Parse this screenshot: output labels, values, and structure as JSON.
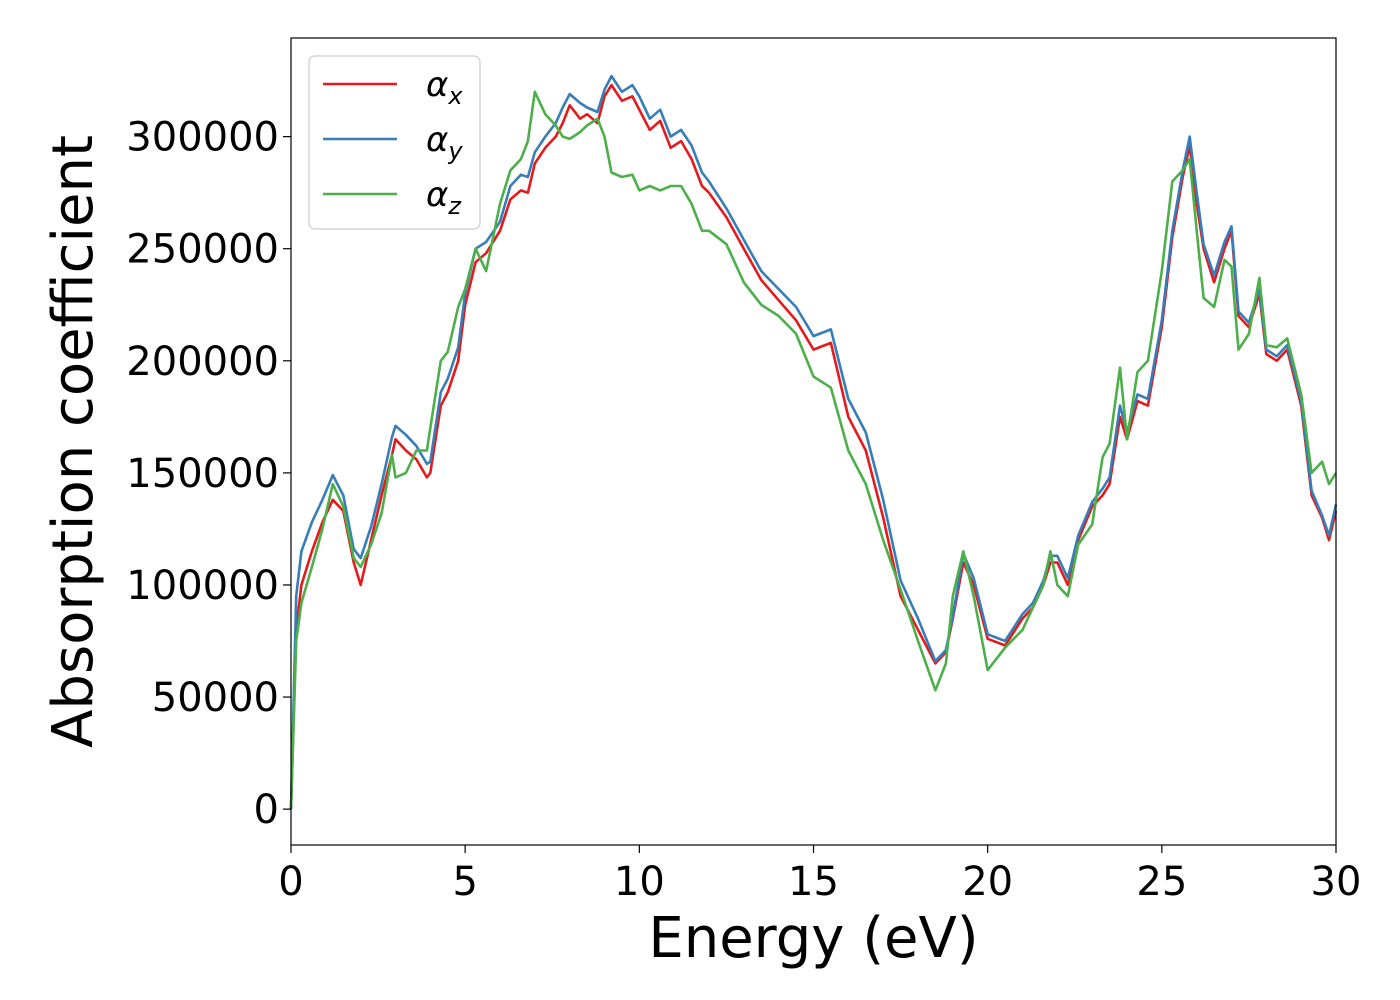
{
  "chart_data": {
    "type": "line",
    "xlabel": "Energy (eV)",
    "ylabel": "Absorption coefficient",
    "xlim": [
      0,
      30
    ],
    "ylim": [
      -16000,
      344000
    ],
    "xticks": [
      0,
      5,
      10,
      15,
      20,
      25,
      30
    ],
    "xtick_labels": [
      "0",
      "5",
      "10",
      "15",
      "20",
      "25",
      "30"
    ],
    "yticks": [
      0,
      50000,
      100000,
      150000,
      200000,
      250000,
      300000
    ],
    "ytick_labels": [
      "0",
      "50000",
      "100000",
      "150000",
      "200000",
      "250000",
      "300000"
    ],
    "grid": false,
    "legend": "top-left",
    "series": [
      {
        "name": "αx",
        "symbol": "α",
        "subscript": "x",
        "color": "#e41a1c",
        "x": [
          0,
          0.15,
          0.3,
          0.6,
          0.9,
          1.2,
          1.5,
          1.8,
          2.0,
          2.3,
          2.6,
          2.9,
          3.0,
          3.3,
          3.6,
          3.9,
          4.0,
          4.3,
          4.5,
          4.8,
          5.0,
          5.3,
          5.6,
          6.0,
          6.3,
          6.6,
          6.8,
          7.0,
          7.3,
          7.6,
          7.8,
          8.0,
          8.3,
          8.5,
          8.8,
          9.0,
          9.2,
          9.5,
          9.8,
          10.0,
          10.3,
          10.6,
          10.9,
          11.2,
          11.5,
          11.8,
          12.0,
          12.5,
          13.0,
          13.5,
          14.0,
          14.5,
          15.0,
          15.5,
          16.0,
          16.5,
          17.0,
          17.5,
          18.0,
          18.5,
          18.8,
          19.0,
          19.3,
          19.6,
          20.0,
          20.5,
          21.0,
          21.3,
          21.6,
          21.8,
          22.0,
          22.3,
          22.6,
          23.0,
          23.3,
          23.5,
          23.8,
          24.0,
          24.3,
          24.6,
          25.0,
          25.3,
          25.6,
          25.8,
          26.0,
          26.2,
          26.5,
          26.8,
          27.0,
          27.2,
          27.5,
          27.8,
          28.0,
          28.3,
          28.6,
          29.0,
          29.3,
          29.6,
          29.8,
          30.0
        ],
        "y": [
          0,
          80000,
          100000,
          115000,
          128000,
          138000,
          133000,
          110000,
          100000,
          120000,
          140000,
          158000,
          165000,
          160000,
          156000,
          148000,
          150000,
          180000,
          186000,
          200000,
          225000,
          244000,
          248000,
          258000,
          272000,
          276000,
          275000,
          288000,
          295000,
          300000,
          306000,
          314000,
          308000,
          310000,
          306000,
          318000,
          323000,
          316000,
          318000,
          312000,
          303000,
          307000,
          295000,
          298000,
          290000,
          278000,
          275000,
          264000,
          250000,
          236000,
          227000,
          218000,
          205000,
          208000,
          175000,
          160000,
          130000,
          95000,
          80000,
          65000,
          70000,
          85000,
          110000,
          100000,
          76000,
          73000,
          85000,
          90000,
          100000,
          110000,
          110000,
          100000,
          120000,
          135000,
          140000,
          145000,
          175000,
          165000,
          182000,
          180000,
          215000,
          255000,
          282000,
          296000,
          270000,
          250000,
          235000,
          250000,
          258000,
          220000,
          215000,
          230000,
          203000,
          200000,
          205000,
          180000,
          140000,
          130000,
          120000,
          133000
        ]
      },
      {
        "name": "αy",
        "symbol": "α",
        "subscript": "y",
        "color": "#377eb8",
        "x": [
          0,
          0.15,
          0.3,
          0.6,
          0.9,
          1.2,
          1.5,
          1.8,
          2.0,
          2.3,
          2.6,
          2.9,
          3.0,
          3.3,
          3.6,
          3.9,
          4.0,
          4.3,
          4.5,
          4.8,
          5.0,
          5.3,
          5.6,
          6.0,
          6.3,
          6.6,
          6.8,
          7.0,
          7.3,
          7.6,
          7.8,
          8.0,
          8.3,
          8.5,
          8.8,
          9.0,
          9.2,
          9.5,
          9.8,
          10.0,
          10.3,
          10.6,
          10.9,
          11.2,
          11.5,
          11.8,
          12.0,
          12.5,
          13.0,
          13.5,
          14.0,
          14.5,
          15.0,
          15.5,
          16.0,
          16.5,
          17.0,
          17.5,
          18.0,
          18.5,
          18.8,
          19.0,
          19.3,
          19.6,
          20.0,
          20.5,
          21.0,
          21.3,
          21.6,
          21.8,
          22.0,
          22.3,
          22.6,
          23.0,
          23.3,
          23.5,
          23.8,
          24.0,
          24.3,
          24.6,
          25.0,
          25.3,
          25.6,
          25.8,
          26.0,
          26.2,
          26.5,
          26.8,
          27.0,
          27.2,
          27.5,
          27.8,
          28.0,
          28.3,
          28.6,
          29.0,
          29.3,
          29.6,
          29.8,
          30.0
        ],
        "y": [
          0,
          95000,
          115000,
          128000,
          138000,
          149000,
          140000,
          116000,
          112000,
          126000,
          145000,
          166000,
          171000,
          167000,
          162000,
          154000,
          155000,
          186000,
          192000,
          206000,
          230000,
          250000,
          253000,
          262000,
          278000,
          283000,
          282000,
          293000,
          300000,
          306000,
          313000,
          319000,
          315000,
          313000,
          311000,
          321000,
          327000,
          320000,
          323000,
          318000,
          308000,
          312000,
          300000,
          303000,
          296000,
          284000,
          280000,
          268000,
          254000,
          240000,
          232000,
          224000,
          211000,
          214000,
          183000,
          168000,
          138000,
          102000,
          85000,
          66000,
          71000,
          86000,
          114000,
          103000,
          78000,
          75000,
          87000,
          92000,
          102000,
          113000,
          113000,
          103000,
          122000,
          137000,
          143000,
          148000,
          180000,
          168000,
          185000,
          183000,
          218000,
          258000,
          285000,
          300000,
          275000,
          252000,
          238000,
          253000,
          260000,
          222000,
          217000,
          232000,
          205000,
          202000,
          207000,
          182000,
          142000,
          131000,
          122000,
          136000
        ]
      },
      {
        "name": "αz",
        "symbol": "α",
        "subscript": "z",
        "color": "#4daf4a",
        "x": [
          0,
          0.15,
          0.3,
          0.6,
          0.9,
          1.2,
          1.5,
          1.8,
          2.0,
          2.3,
          2.6,
          2.9,
          3.0,
          3.3,
          3.6,
          3.9,
          4.0,
          4.3,
          4.5,
          4.8,
          5.0,
          5.3,
          5.6,
          6.0,
          6.3,
          6.6,
          6.8,
          7.0,
          7.3,
          7.6,
          7.8,
          8.0,
          8.3,
          8.5,
          8.8,
          9.0,
          9.2,
          9.5,
          9.8,
          10.0,
          10.3,
          10.6,
          10.9,
          11.2,
          11.5,
          11.8,
          12.0,
          12.5,
          13.0,
          13.5,
          14.0,
          14.5,
          15.0,
          15.5,
          16.0,
          16.5,
          17.0,
          17.5,
          18.0,
          18.5,
          18.8,
          19.0,
          19.3,
          19.6,
          20.0,
          20.5,
          21.0,
          21.3,
          21.6,
          21.8,
          22.0,
          22.3,
          22.6,
          23.0,
          23.3,
          23.5,
          23.8,
          24.0,
          24.3,
          24.6,
          25.0,
          25.3,
          25.6,
          25.8,
          26.0,
          26.2,
          26.5,
          26.8,
          27.0,
          27.2,
          27.5,
          27.8,
          28.0,
          28.3,
          28.6,
          29.0,
          29.3,
          29.6,
          29.8,
          30.0
        ],
        "y": [
          0,
          75000,
          92000,
          108000,
          125000,
          145000,
          135000,
          112000,
          108000,
          118000,
          132000,
          158000,
          148000,
          150000,
          160000,
          160000,
          170000,
          200000,
          204000,
          224000,
          232000,
          250000,
          240000,
          270000,
          285000,
          290000,
          298000,
          320000,
          310000,
          305000,
          300000,
          299000,
          302000,
          305000,
          308000,
          300000,
          284000,
          282000,
          283000,
          276000,
          278000,
          276000,
          278000,
          278000,
          270000,
          258000,
          258000,
          252000,
          235000,
          225000,
          220000,
          212000,
          193000,
          188000,
          160000,
          145000,
          120000,
          98000,
          75000,
          53000,
          65000,
          95000,
          115000,
          95000,
          62000,
          72000,
          80000,
          90000,
          100000,
          115000,
          100000,
          95000,
          118000,
          127000,
          157000,
          163000,
          197000,
          165000,
          195000,
          200000,
          240000,
          280000,
          285000,
          290000,
          258000,
          228000,
          224000,
          245000,
          242000,
          205000,
          212000,
          237000,
          207000,
          206000,
          210000,
          185000,
          150000,
          155000,
          145000,
          150000
        ]
      }
    ]
  }
}
